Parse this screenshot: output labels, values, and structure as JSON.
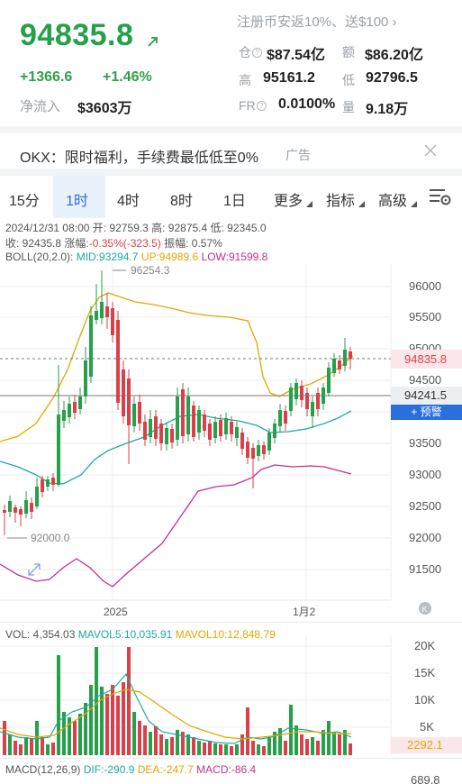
{
  "header": {
    "price": "94835.8",
    "change_abs": "+1366.6",
    "change_pct": "+1.46%",
    "netflow_label": "净流入",
    "netflow_value": "$3603万",
    "promo_text": "注册币安返10%、送$100 ›"
  },
  "stats": {
    "cang_label": "仓",
    "cang_value": "$87.54亿",
    "e_label": "额",
    "e_value": "$86.20亿",
    "high_label": "高",
    "high_value": "95161.2",
    "low_label": "低",
    "low_value": "92796.5",
    "fr_label": "FR",
    "fr_value": "0.0100%",
    "vol_label": "量",
    "vol_value": "9.18万"
  },
  "ad": {
    "text": "OKX：限时福利，手续费最低低至0%",
    "tag": "广告"
  },
  "tabs": {
    "t15m": "15分",
    "t1h": "1时",
    "t4h": "4时",
    "t8h": "8时",
    "t1d": "1日",
    "more": "更多",
    "indicator": "指标",
    "advanced": "高级"
  },
  "info": {
    "line1": "2024/12/31 08:00 开: 92759.3 高: 92875.4 低: 92345.0",
    "close": "收: 92435.8",
    "chg_label": "涨幅:",
    "chg_value": "-0.35%(-323.5)",
    "amp": "振幅: 0.57%",
    "boll_label": "BOLL(20,2.0):",
    "boll_mid": "MID:93294.7",
    "boll_up": "UP:94989.6",
    "boll_low": "LOW:91599.8"
  },
  "price_axis": [
    "96000",
    "95500",
    "95000",
    "94500",
    "93500",
    "93000",
    "92500",
    "92000",
    "91500"
  ],
  "price_tag": "94835.8",
  "cross_tag": "94241.5",
  "alert_label": "+ 预警",
  "annotations": {
    "max": "96254.3",
    "min": "92000.0"
  },
  "time_axis": {
    "t1": "2025",
    "t2": "1月2"
  },
  "volume": {
    "vol": "VOL: 4,354.03",
    "mavol5": "MAVOL5:10,035.91",
    "mavol10": "MAVOL10:12,848.79",
    "axis": [
      "20K",
      "15K",
      "10K",
      "5K"
    ],
    "last_tag": "2292.1"
  },
  "macd": {
    "label": "MACD(12,26,9)",
    "dif": "DIF:-290.9",
    "dea": "DEA:-247.7",
    "macd": "MACD:-86.4",
    "axis_top": "689.8"
  },
  "colors": {
    "up": "#26a04a",
    "down": "#d9404a",
    "accent": "#2a6fdb",
    "boll_mid": "#1fa99a",
    "boll_up": "#e0a800",
    "boll_low": "#c2328a"
  }
}
